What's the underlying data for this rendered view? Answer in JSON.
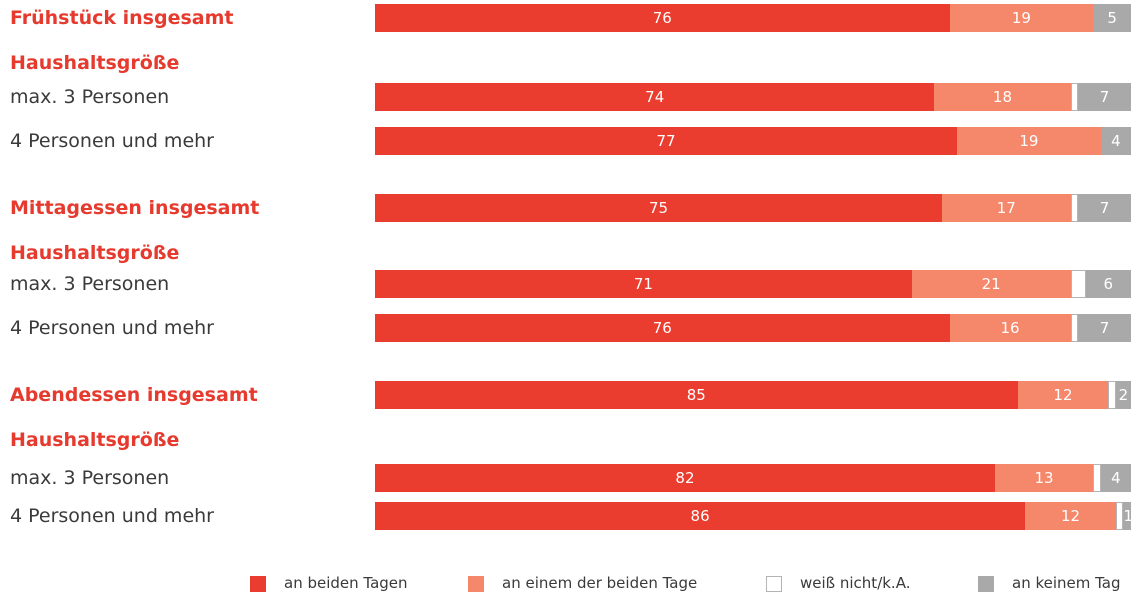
{
  "chart_data": {
    "type": "bar",
    "orientation": "horizontal",
    "stacked": true,
    "xlim": [
      0,
      100
    ],
    "series": [
      {
        "name": "an beiden Tagen",
        "color": "#ea3d2f"
      },
      {
        "name": "an einem der beiden Tage",
        "color": "#f5876b"
      },
      {
        "name": "weiß nicht/k.A.",
        "color": "#ffffff",
        "border": "#b4b4b4"
      },
      {
        "name": "an keinem Tag",
        "color": "#a9a9a9"
      }
    ],
    "rows": [
      {
        "label": "Frühstück insgesamt",
        "bold": true,
        "values": [
          76,
          19,
          0,
          5
        ],
        "labels": [
          "76",
          "19",
          "",
          "5"
        ]
      },
      {
        "label": "Haushaltsgröße",
        "bold": true,
        "values": null,
        "labels": null
      },
      {
        "label": "max. 3 Personen",
        "bold": false,
        "values": [
          74,
          18,
          1,
          7
        ],
        "labels": [
          "74",
          "18",
          "",
          "7"
        ]
      },
      {
        "label": "4 Personen und mehr",
        "bold": false,
        "values": [
          77,
          19,
          0,
          4
        ],
        "labels": [
          "77",
          "19",
          "",
          "4"
        ]
      },
      {
        "label": "Mittagessen insgesamt",
        "bold": true,
        "values": [
          75,
          17,
          1,
          7
        ],
        "labels": [
          "75",
          "17",
          "",
          "7"
        ]
      },
      {
        "label": "Haushaltsgröße",
        "bold": true,
        "values": null,
        "labels": null
      },
      {
        "label": "max. 3 Personen",
        "bold": false,
        "values": [
          71,
          21,
          2,
          6
        ],
        "labels": [
          "71",
          "21",
          "",
          "6"
        ]
      },
      {
        "label": "4 Personen und mehr",
        "bold": false,
        "values": [
          76,
          16,
          1,
          7
        ],
        "labels": [
          "76",
          "16",
          "",
          "7"
        ]
      },
      {
        "label": "Abendessen insgesamt",
        "bold": true,
        "values": [
          85,
          12,
          1,
          2
        ],
        "labels": [
          "85",
          "12",
          "",
          "2"
        ]
      },
      {
        "label": "Haushaltsgröße",
        "bold": true,
        "values": null,
        "labels": null
      },
      {
        "label": "max. 3 Personen",
        "bold": false,
        "values": [
          82,
          13,
          1,
          4
        ],
        "labels": [
          "82",
          "13",
          "",
          "4"
        ]
      },
      {
        "label": "4 Personen und mehr",
        "bold": false,
        "values": [
          86,
          12,
          1,
          1
        ],
        "labels": [
          "86",
          "12",
          "",
          "1"
        ]
      }
    ],
    "legend_position": "bottom-right"
  }
}
